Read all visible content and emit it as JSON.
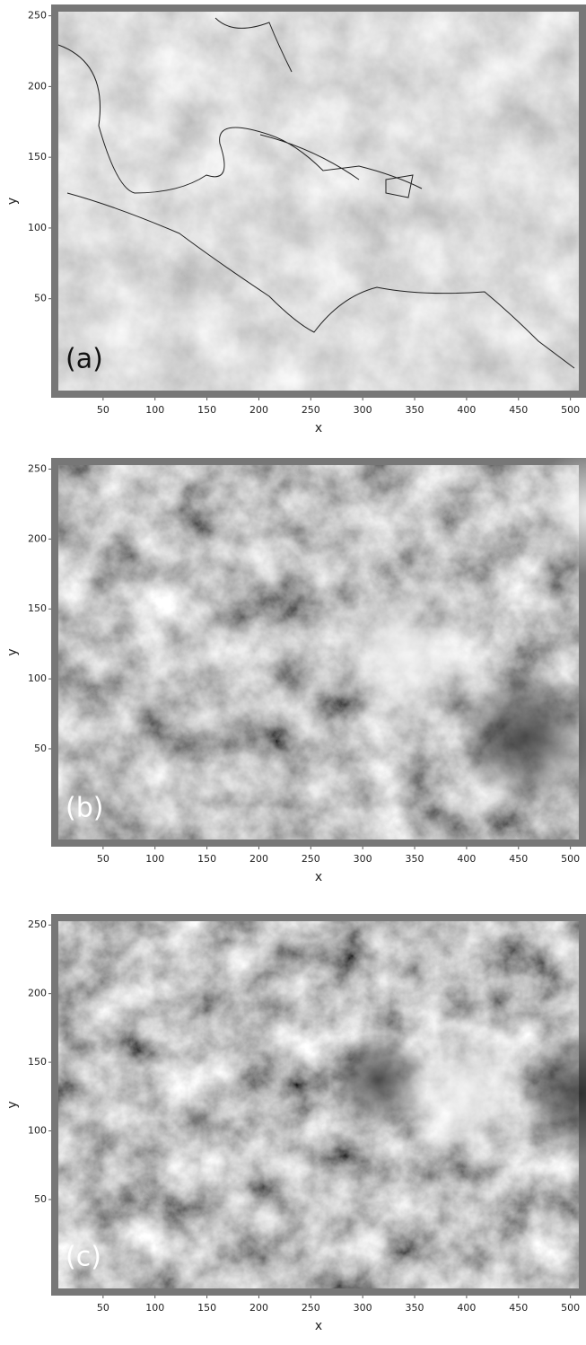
{
  "chart_data": [
    {
      "type": "image",
      "annotation": "(a)",
      "xlabel": "x",
      "ylabel": "y",
      "xlim": [
        0,
        515
      ],
      "ylim": [
        -20,
        258
      ],
      "xticks": [
        50,
        100,
        150,
        200,
        250,
        300,
        350,
        400,
        450,
        500
      ],
      "yticks": [
        50,
        100,
        150,
        200,
        250
      ]
    },
    {
      "type": "image",
      "annotation": "(b)",
      "xlabel": "x",
      "ylabel": "y",
      "xlim": [
        0,
        515
      ],
      "ylim": [
        -20,
        258
      ],
      "xticks": [
        50,
        100,
        150,
        200,
        250,
        300,
        350,
        400,
        450,
        500
      ],
      "yticks": [
        50,
        100,
        150,
        200,
        250
      ]
    },
    {
      "type": "image",
      "annotation": "(c)",
      "xlabel": "x",
      "ylabel": "y",
      "xlim": [
        0,
        515
      ],
      "ylim": [
        -20,
        258
      ],
      "xticks": [
        50,
        100,
        150,
        200,
        250,
        300,
        350,
        400,
        450,
        500
      ],
      "yticks": [
        50,
        100,
        150,
        200,
        250
      ]
    }
  ]
}
